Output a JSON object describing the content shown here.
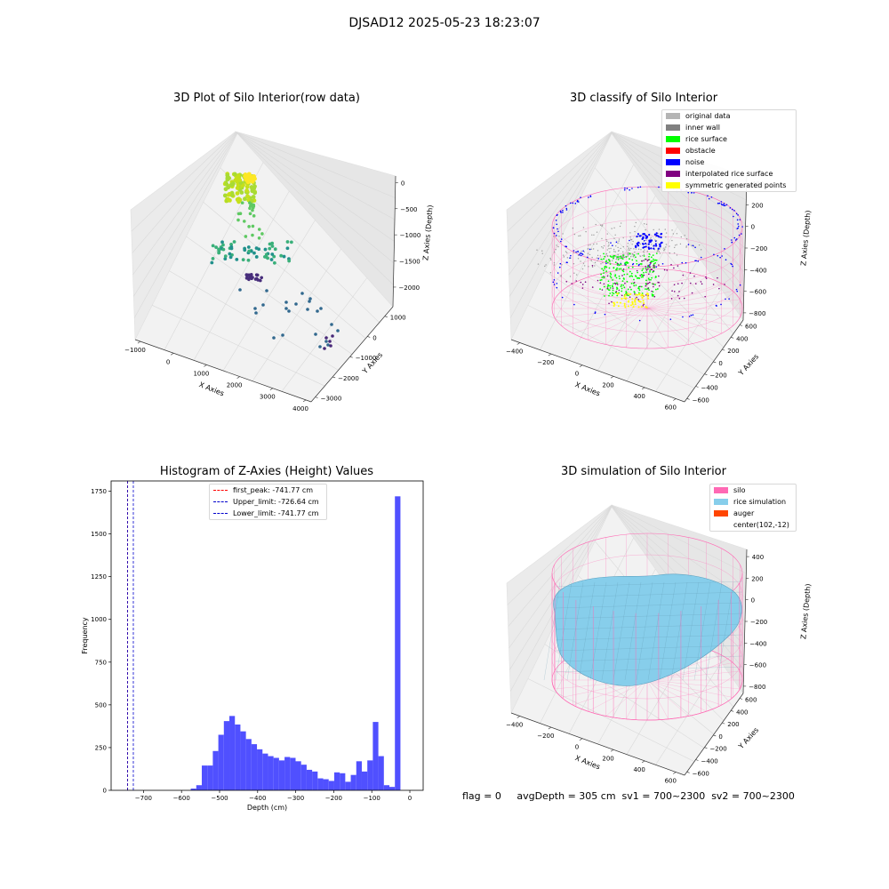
{
  "figure": {
    "suptitle": "DJSAD12 2025-05-23 18:23:07",
    "footer": "flag = 0     avgDepth = 305 cm  sv1 = 700~2300  sv2 = 700~2300"
  },
  "colors": {
    "pane": "#f2f2f2",
    "hist_bar": "#5050ff",
    "peak_line": "#ff0000",
    "limit_line": "#0000cc",
    "silo_wire": "#ff69b4",
    "rice": "#87ceeb"
  },
  "panels": {
    "raw": {
      "title": "3D Plot of Silo Interior(row data)",
      "xlabel": "X Axies",
      "ylabel": "Y Axies",
      "zlabel": "Z Axies (Depth)",
      "xticks": [
        "−1000",
        "0",
        "1000",
        "2000",
        "3000",
        "4000"
      ],
      "yticks": [
        "1000",
        "0",
        "−1000",
        "−2000",
        "−3000"
      ],
      "zticks": [
        "0",
        "−500",
        "−1000",
        "−1500",
        "−2000"
      ]
    },
    "classify": {
      "title": "3D classify of Silo Interior",
      "xlabel": "X Axies",
      "ylabel": "Y Axies",
      "zlabel": "Z Axies (Depth)",
      "xticks": [
        "−400",
        "−200",
        "0",
        "200",
        "400",
        "600"
      ],
      "yticks": [
        "600",
        "400",
        "200",
        "0",
        "−200",
        "−400",
        "−600"
      ],
      "zticks": [
        "400",
        "200",
        "0",
        "−200",
        "−400",
        "−600",
        "−800"
      ],
      "legend": [
        {
          "label": "original data",
          "color": "#b4b4b4"
        },
        {
          "label": "inner wall",
          "color": "#808080"
        },
        {
          "label": "rice surface",
          "color": "#00ff00"
        },
        {
          "label": "obstacle",
          "color": "#ff0000"
        },
        {
          "label": "noise",
          "color": "#0000ff"
        },
        {
          "label": "interpolated rice surface",
          "color": "#800080"
        },
        {
          "label": "symmetric generated points",
          "color": "#ffff00"
        }
      ]
    },
    "simulation": {
      "title": "3D simulation of Silo Interior",
      "xlabel": "X Axies",
      "ylabel": "Y Axies",
      "zlabel": "Z Axies (Depth)",
      "xticks": [
        "−400",
        "−200",
        "0",
        "200",
        "400",
        "600"
      ],
      "yticks": [
        "600",
        "400",
        "200",
        "0",
        "−200",
        "−400",
        "−600"
      ],
      "zticks": [
        "400",
        "200",
        "0",
        "−200",
        "−400",
        "−600",
        "−800"
      ],
      "legend": [
        {
          "label": "silo",
          "color": "#ff69b4"
        },
        {
          "label": "rice simulation",
          "color": "#87ceeb"
        },
        {
          "label": "auger",
          "color": "#ff4500"
        },
        {
          "label": "center(102,-12)",
          "color": ""
        }
      ]
    }
  },
  "chart_data": {
    "type": "bar",
    "title": "Histogram of Z-Axies (Height) Values",
    "xlabel": "Depth (cm)",
    "ylabel": "Frequency",
    "xlim": [
      -785,
      35
    ],
    "ylim": [
      0,
      1810
    ],
    "xticks": [
      -700,
      -600,
      -500,
      -400,
      -300,
      -200,
      -100,
      0
    ],
    "yticks": [
      0,
      250,
      500,
      750,
      1000,
      1250,
      1500,
      1750
    ],
    "bin_width": 14.5,
    "bars": [
      {
        "x": -568.5,
        "y": 10
      },
      {
        "x": -554,
        "y": 30
      },
      {
        "x": -539.5,
        "y": 145
      },
      {
        "x": -525,
        "y": 145
      },
      {
        "x": -510.5,
        "y": 230
      },
      {
        "x": -496,
        "y": 325
      },
      {
        "x": -481.5,
        "y": 405
      },
      {
        "x": -467,
        "y": 435
      },
      {
        "x": -452.5,
        "y": 385
      },
      {
        "x": -438,
        "y": 345
      },
      {
        "x": -423.5,
        "y": 300
      },
      {
        "x": -409,
        "y": 270
      },
      {
        "x": -394.5,
        "y": 240
      },
      {
        "x": -380,
        "y": 215
      },
      {
        "x": -365.5,
        "y": 200
      },
      {
        "x": -351,
        "y": 190
      },
      {
        "x": -336.5,
        "y": 175
      },
      {
        "x": -322,
        "y": 195
      },
      {
        "x": -307.5,
        "y": 190
      },
      {
        "x": -293,
        "y": 170
      },
      {
        "x": -278.5,
        "y": 150
      },
      {
        "x": -264,
        "y": 120
      },
      {
        "x": -249.5,
        "y": 110
      },
      {
        "x": -235,
        "y": 70
      },
      {
        "x": -220.5,
        "y": 65
      },
      {
        "x": -206,
        "y": 55
      },
      {
        "x": -191.5,
        "y": 105
      },
      {
        "x": -177,
        "y": 100
      },
      {
        "x": -162.5,
        "y": 50
      },
      {
        "x": -148,
        "y": 90
      },
      {
        "x": -133.5,
        "y": 170
      },
      {
        "x": -119,
        "y": 110
      },
      {
        "x": -104.5,
        "y": 175
      },
      {
        "x": -90,
        "y": 400
      },
      {
        "x": -75.5,
        "y": 200
      },
      {
        "x": -61,
        "y": 30
      },
      {
        "x": -46.5,
        "y": 20
      },
      {
        "x": -32,
        "y": 1720
      }
    ],
    "lines": [
      {
        "label": "first_peak: -741.77 cm",
        "x": -741.77,
        "color": "#ff0000"
      },
      {
        "label": "Upper_limit: -726.64 cm",
        "x": -726.64,
        "color": "#0000cc"
      },
      {
        "label": "Lower_limit: -741.77 cm",
        "x": -741.77,
        "color": "#0000cc"
      }
    ],
    "legend_position": "top-center"
  }
}
